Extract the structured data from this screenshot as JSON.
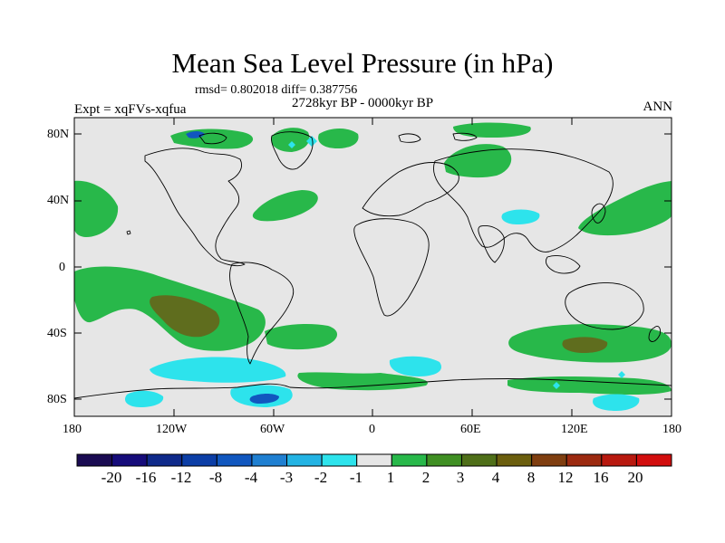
{
  "title": "Mean Sea Level Pressure (in hPa)",
  "stats": "rmsd= 0.802018 diff= 0.387756",
  "experiment": "Expt = xqFVs-xqfua",
  "period": "2728kyr BP - 0000kyr BP",
  "season": "ANN",
  "lat_labels": [
    "80N",
    "40N",
    "0",
    "40S",
    "80S"
  ],
  "lon_labels": [
    "180",
    "120W",
    "60W",
    "0",
    "60E",
    "120E",
    "180"
  ],
  "colorbar": {
    "labels": [
      "-20",
      "-16",
      "-12",
      "-8",
      "-4",
      "-3",
      "-2",
      "-1",
      "1",
      "2",
      "3",
      "4",
      "8",
      "12",
      "16",
      "20"
    ],
    "colors": [
      "#1a0b52",
      "#160c7a",
      "#0f2a8a",
      "#0c3ea6",
      "#1157bf",
      "#1f7fd1",
      "#23b3e3",
      "#2de3ec",
      "#e6e6e6",
      "#28b84a",
      "#3f8f23",
      "#4f6f19",
      "#6b5e0e",
      "#7f3e10",
      "#9c2a10",
      "#b8190f",
      "#d20e0e"
    ]
  },
  "colors": {
    "neutral": "#e6e6e6",
    "pos1": "#28b84a",
    "pos3": "#5f6d1e",
    "neg1": "#2de3ec",
    "neg2": "#23b3e3",
    "neg3": "#1157bf"
  }
}
